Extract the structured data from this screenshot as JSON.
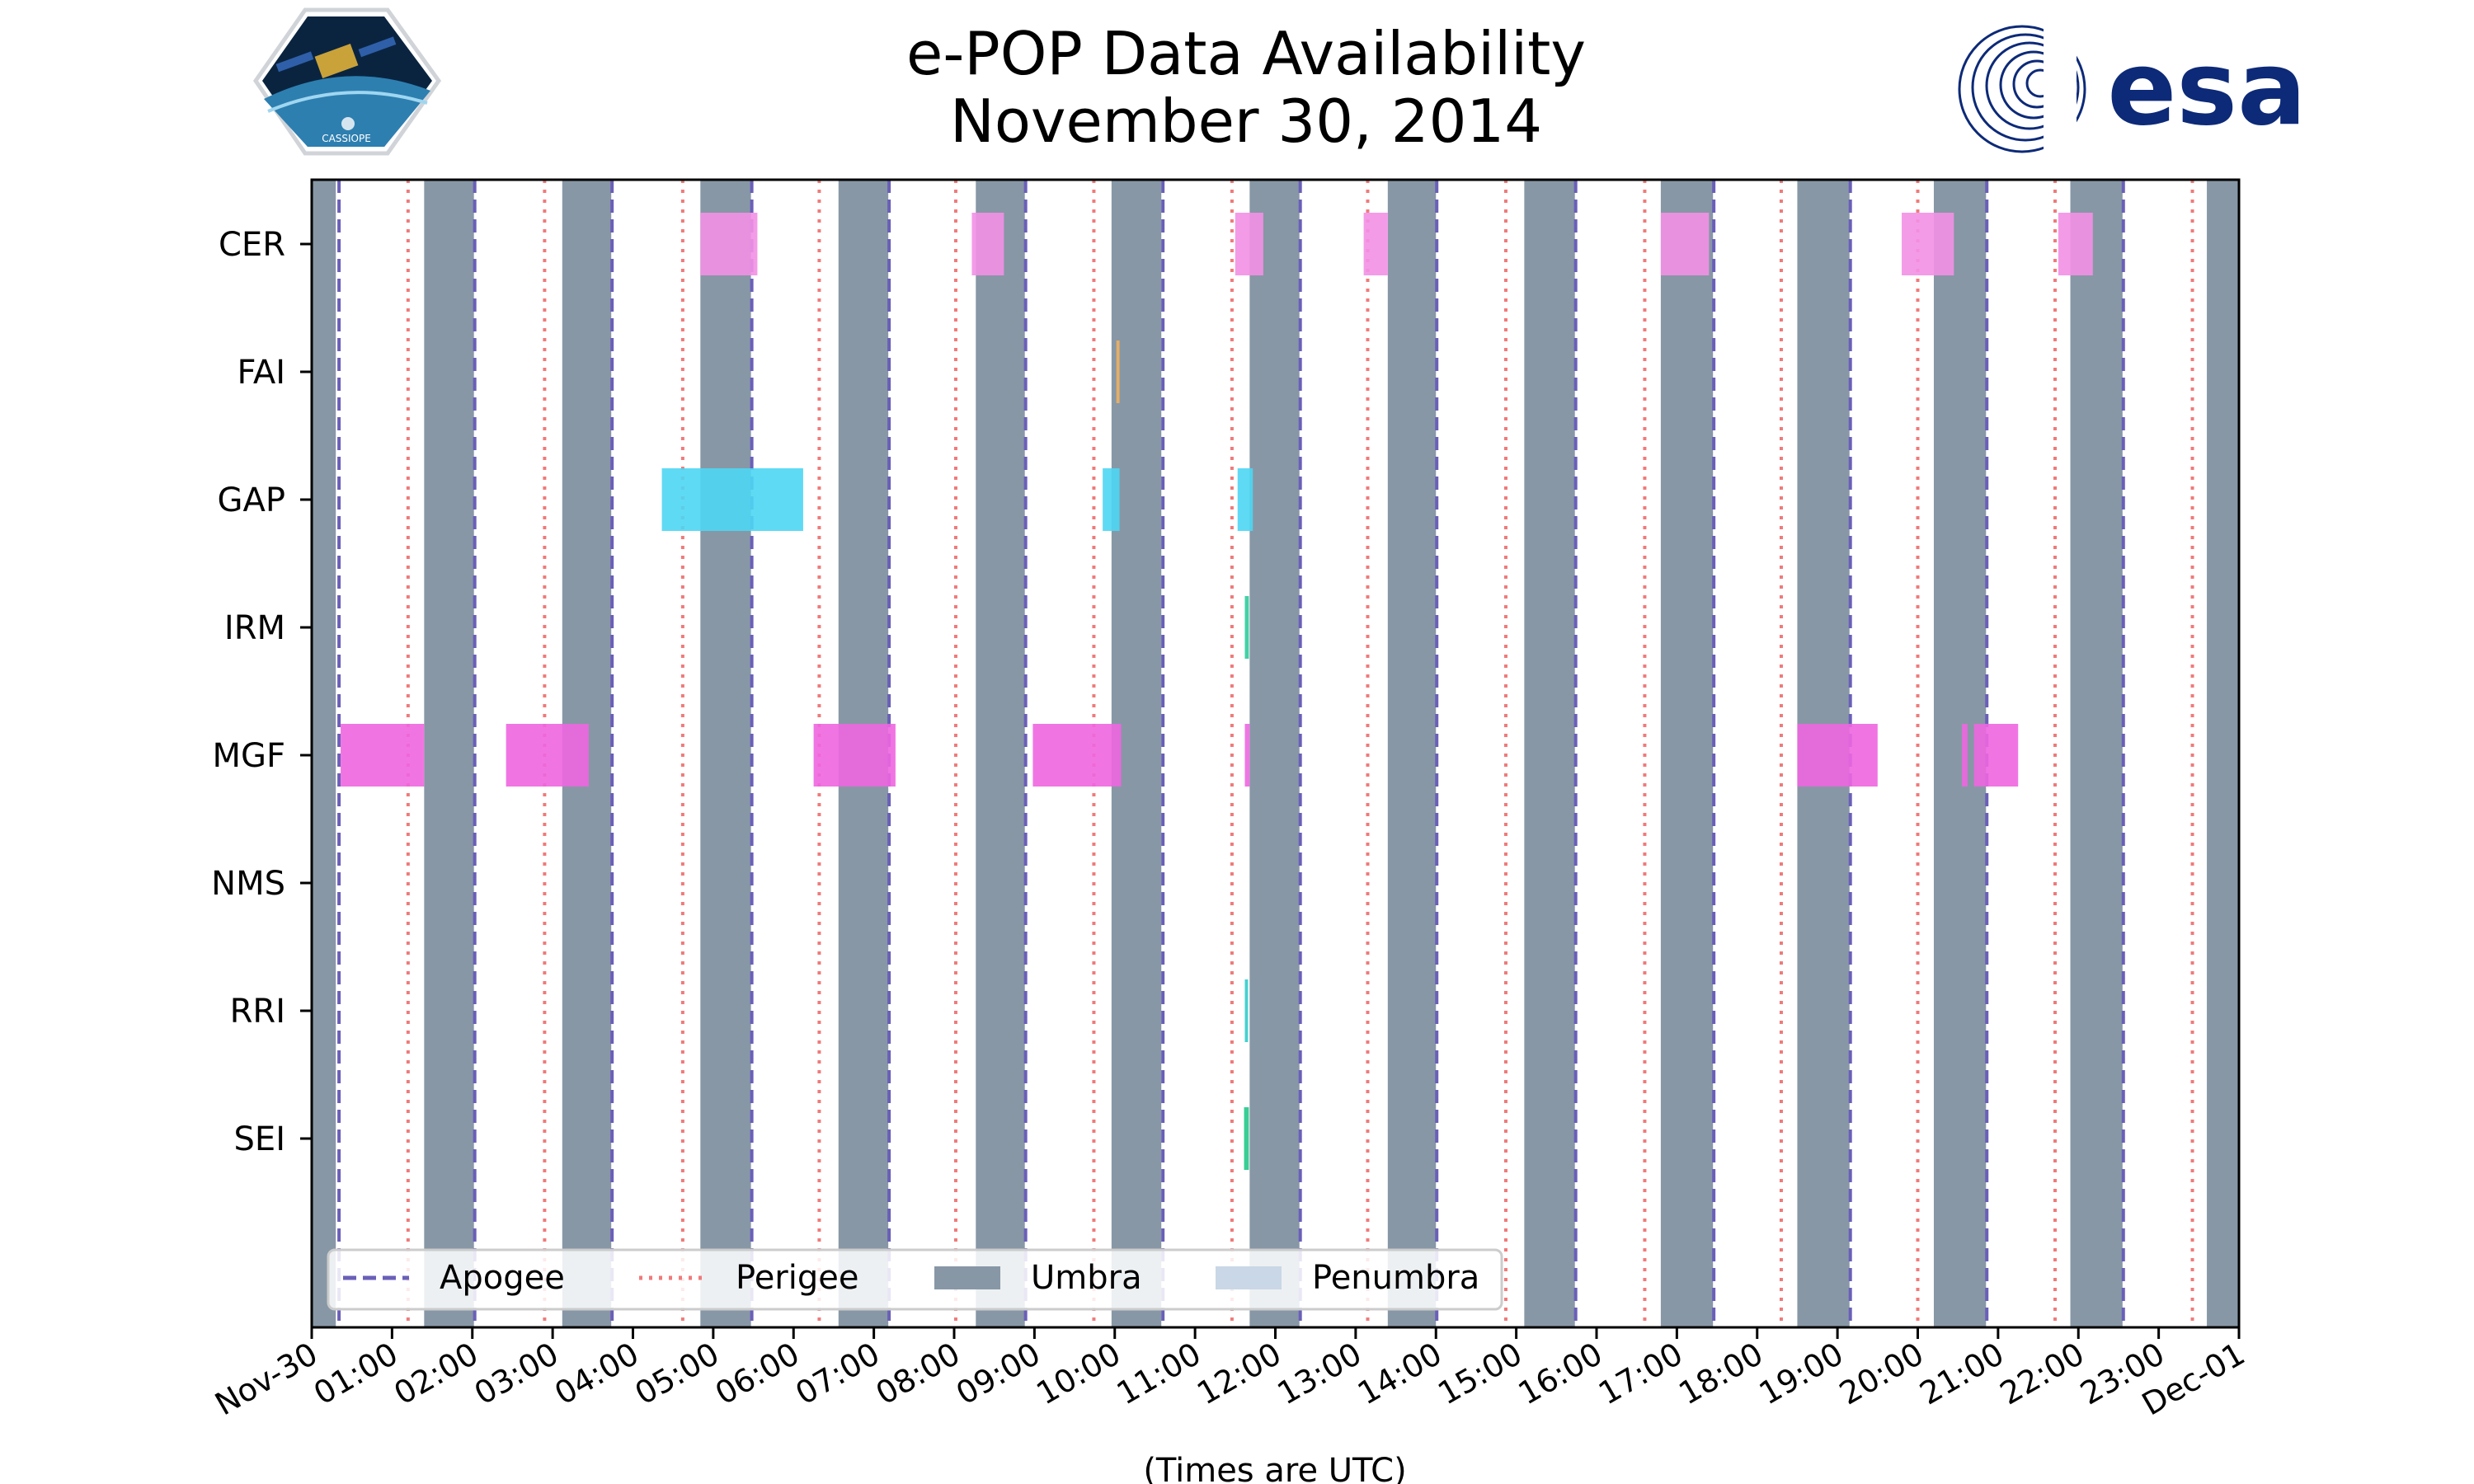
{
  "page": {
    "title_line1": "e-POP Data Availability",
    "title_line2": "November 30, 2014",
    "logo_left": {
      "name": "cassiope-mission-logo",
      "label": "CASSIOPE"
    },
    "logo_right": {
      "name": "esa-logo",
      "label": "esa"
    }
  },
  "chart_data": {
    "type": "timeline",
    "title": "e-POP Data Availability November 30, 2014",
    "xlabel": "(Times are UTC)",
    "x_unit": "hours",
    "xlim": [
      0,
      24
    ],
    "x_ticks": [
      {
        "value": 0,
        "label": "Nov-30"
      },
      {
        "value": 1,
        "label": "01:00"
      },
      {
        "value": 2,
        "label": "02:00"
      },
      {
        "value": 3,
        "label": "03:00"
      },
      {
        "value": 4,
        "label": "04:00"
      },
      {
        "value": 5,
        "label": "05:00"
      },
      {
        "value": 6,
        "label": "06:00"
      },
      {
        "value": 7,
        "label": "07:00"
      },
      {
        "value": 8,
        "label": "08:00"
      },
      {
        "value": 9,
        "label": "09:00"
      },
      {
        "value": 10,
        "label": "10:00"
      },
      {
        "value": 11,
        "label": "11:00"
      },
      {
        "value": 12,
        "label": "12:00"
      },
      {
        "value": 13,
        "label": "13:00"
      },
      {
        "value": 14,
        "label": "14:00"
      },
      {
        "value": 15,
        "label": "15:00"
      },
      {
        "value": 16,
        "label": "16:00"
      },
      {
        "value": 17,
        "label": "17:00"
      },
      {
        "value": 18,
        "label": "18:00"
      },
      {
        "value": 19,
        "label": "19:00"
      },
      {
        "value": 20,
        "label": "20:00"
      },
      {
        "value": 21,
        "label": "21:00"
      },
      {
        "value": 22,
        "label": "22:00"
      },
      {
        "value": 23,
        "label": "23:00"
      },
      {
        "value": 24,
        "label": "Dec-01"
      }
    ],
    "instruments": [
      "CER",
      "FAI",
      "GAP",
      "IRM",
      "MGF",
      "NMS",
      "RRI",
      "SEI"
    ],
    "umbra": [
      [
        0.0,
        0.3
      ],
      [
        1.4,
        2.02
      ],
      [
        3.12,
        3.73
      ],
      [
        4.84,
        5.47
      ],
      [
        6.56,
        7.18
      ],
      [
        8.27,
        8.88
      ],
      [
        9.96,
        10.58
      ],
      [
        11.68,
        12.3
      ],
      [
        13.4,
        14.0
      ],
      [
        15.1,
        15.73
      ],
      [
        16.8,
        17.45
      ],
      [
        18.5,
        19.15
      ],
      [
        20.2,
        20.85
      ],
      [
        21.9,
        22.55
      ],
      [
        23.6,
        24.0
      ]
    ],
    "apogee": [
      0.34,
      2.03,
      3.74,
      5.48,
      7.19,
      8.89,
      10.6,
      12.31,
      14.01,
      15.74,
      17.46,
      19.16,
      20.86,
      22.56
    ],
    "perigee": [
      1.2,
      2.9,
      4.62,
      6.32,
      8.02,
      9.74,
      11.46,
      13.15,
      14.87,
      16.6,
      18.3,
      20.0,
      21.71,
      23.42
    ],
    "penumbra": [],
    "colors": {
      "umbra": "#8797a6",
      "penumbra": "#c9d7e6",
      "apogee": "#6a5fb8",
      "perigee": "#f07a7a",
      "CER": "#f390e6",
      "FAI": "#f0b060",
      "GAP": "#4ed6f3",
      "IRM": "#2ecc9a",
      "MGF": "#ee66e0",
      "NMS": "#999999",
      "RRI": "#33cccc",
      "SEI": "#22c98a"
    },
    "series": [
      {
        "name": "CER",
        "intervals": [
          [
            4.84,
            5.55
          ],
          [
            8.22,
            8.62
          ],
          [
            11.5,
            11.85
          ],
          [
            13.1,
            13.4
          ],
          [
            16.8,
            17.4
          ],
          [
            19.8,
            20.45
          ],
          [
            21.75,
            22.18
          ]
        ]
      },
      {
        "name": "FAI",
        "intervals": [
          [
            10.02,
            10.06
          ]
        ]
      },
      {
        "name": "GAP",
        "intervals": [
          [
            4.36,
            6.12
          ],
          [
            9.85,
            10.06
          ],
          [
            11.53,
            11.72
          ]
        ]
      },
      {
        "name": "IRM",
        "intervals": [
          [
            11.62,
            11.67
          ]
        ]
      },
      {
        "name": "MGF",
        "intervals": [
          [
            0.36,
            1.4
          ],
          [
            2.42,
            3.45
          ],
          [
            6.25,
            7.27
          ],
          [
            8.98,
            10.08
          ],
          [
            11.62,
            11.68
          ],
          [
            18.5,
            19.5
          ],
          [
            20.55,
            20.62
          ],
          [
            20.7,
            21.25
          ]
        ]
      },
      {
        "name": "NMS",
        "intervals": []
      },
      {
        "name": "RRI",
        "intervals": [
          [
            11.62,
            11.66
          ]
        ]
      },
      {
        "name": "SEI",
        "intervals": [
          [
            11.61,
            11.67
          ]
        ]
      }
    ],
    "legend": {
      "position": "lower-left",
      "entries": [
        {
          "label": "Apogee",
          "style": "dashed"
        },
        {
          "label": "Perigee",
          "style": "dotted"
        },
        {
          "label": "Umbra",
          "style": "patch"
        },
        {
          "label": "Penumbra",
          "style": "patch"
        }
      ]
    }
  }
}
